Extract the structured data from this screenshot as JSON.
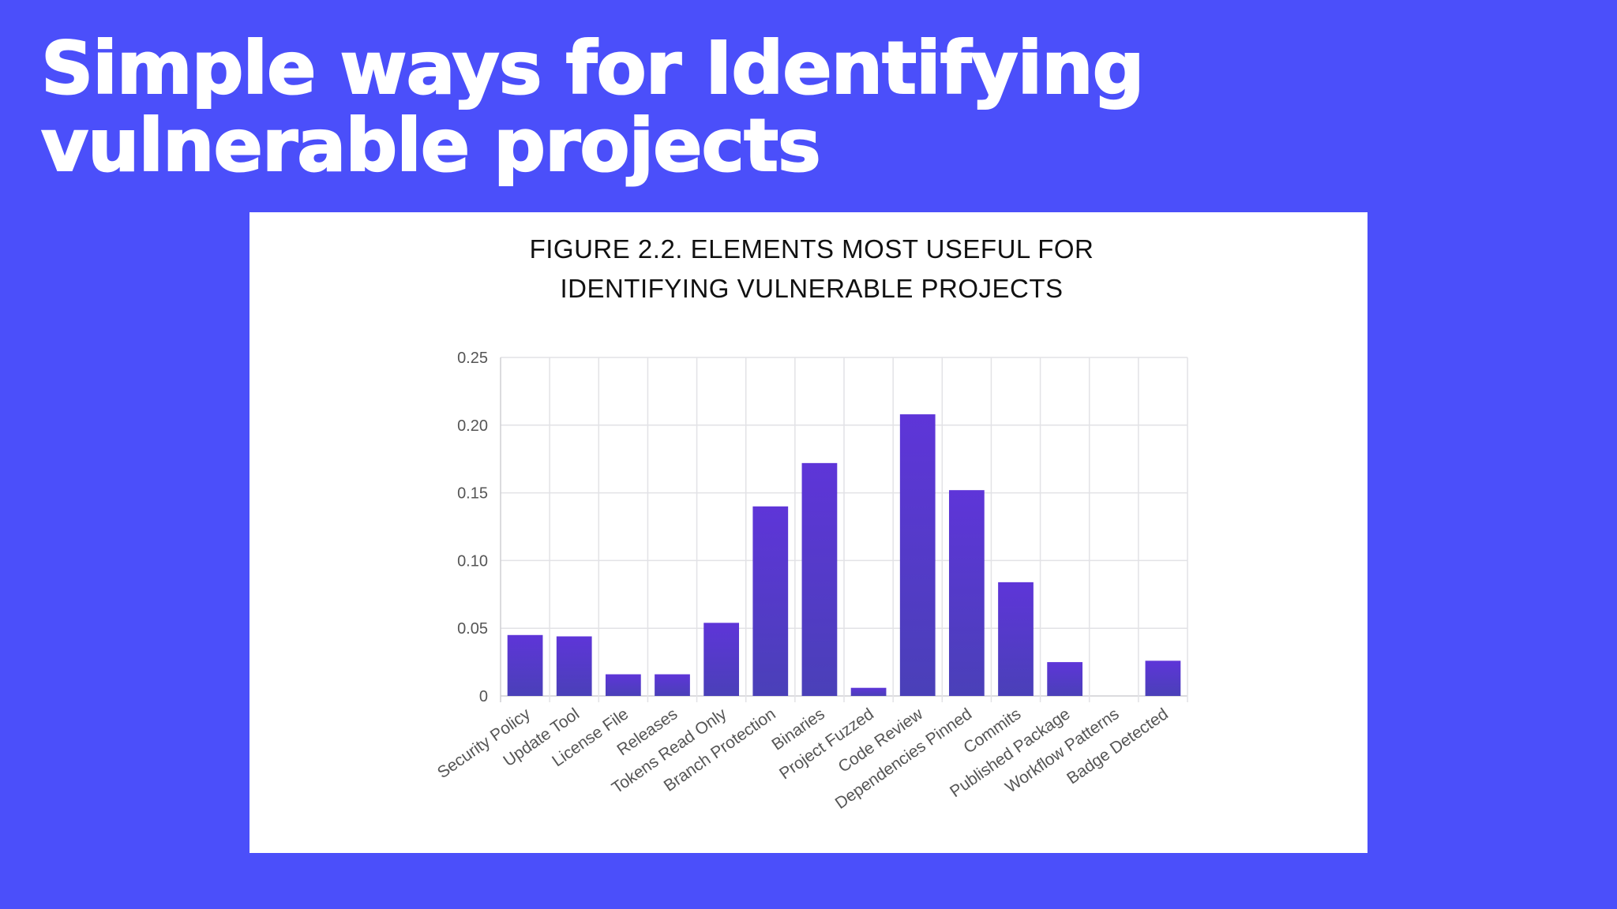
{
  "slide": {
    "title_line1": "Simple ways for Identifying",
    "title_line2": "vulnerable projects"
  },
  "colors": {
    "background": "#4b4ffa",
    "bar_top": "#5e35d8",
    "bar_bottom": "#4a40b8"
  },
  "chart_data": {
    "type": "bar",
    "title": "FIGURE 2.2. ELEMENTS MOST USEFUL FOR IDENTIFYING VULNERABLE PROJECTS",
    "title_lines": [
      "FIGURE 2.2. ELEMENTS MOST USEFUL FOR",
      "IDENTIFYING VULNERABLE PROJECTS"
    ],
    "categories": [
      "Security Policy",
      "Update Tool",
      "License File",
      "Releases",
      "Tokens Read Only",
      "Branch Protection",
      "Binaries",
      "Project Fuzzed",
      "Code Review",
      "Dependencies Pinned",
      "Commits",
      "Published Package",
      "Workflow Patterns",
      "Badge Detected"
    ],
    "values": [
      0.045,
      0.044,
      0.016,
      0.016,
      0.054,
      0.14,
      0.172,
      0.006,
      0.208,
      0.152,
      0.084,
      0.025,
      0.0,
      0.026
    ],
    "ylim": [
      0,
      0.25
    ],
    "yticks": [
      "0",
      "0.05",
      "0.10",
      "0.15",
      "0.20",
      "0.25"
    ],
    "xlabel": "",
    "ylabel": "",
    "grid": true,
    "legend": "none"
  }
}
